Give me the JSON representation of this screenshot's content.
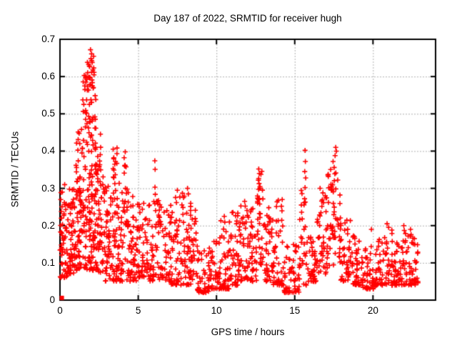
{
  "chart_data": {
    "type": "scatter",
    "title": "Day 187 of 2022, SRMTID for receiver hugh",
    "xlabel": "GPS time / hours",
    "ylabel": "SRMTID / TECUs",
    "xlim": [
      0,
      24
    ],
    "ylim": [
      0,
      0.7
    ],
    "xticks": {
      "values": [
        0,
        5,
        10,
        15,
        20
      ],
      "labels": [
        "0",
        "5",
        "10",
        "15",
        "20"
      ]
    },
    "yticks": {
      "values": [
        0,
        0.1,
        0.2,
        0.3,
        0.4,
        0.5,
        0.6,
        0.7
      ],
      "labels": [
        "0",
        "0.1",
        "0.2",
        "0.3",
        "0.4",
        "0.5",
        "0.6",
        "0.7"
      ]
    },
    "grid": true,
    "grid_style": "dotted at every major tick, mirrored ticks on all four borders",
    "legend": "none",
    "marker": "plus",
    "marker_color": "#ff0000",
    "grid_color": "#b0b0b0",
    "border_color": "#000000",
    "background": "#ffffff",
    "seed": 42,
    "origin_marker": {
      "x": 0.12,
      "y": 0.006,
      "shape": "filled-square"
    },
    "bands_format": "[x_start_h, x_end_h, y_min_TECU, y_max_TECU, point_count, bias(0=low,1=mid,2=spread)]",
    "density_bands": [
      [
        0.0,
        0.5,
        0.06,
        0.29,
        55,
        1
      ],
      [
        0.5,
        1.0,
        0.07,
        0.3,
        55,
        1
      ],
      [
        1.0,
        1.5,
        0.08,
        0.34,
        60,
        1
      ],
      [
        1.0,
        1.6,
        0.34,
        0.47,
        16,
        2
      ],
      [
        1.45,
        1.75,
        0.5,
        0.61,
        9,
        2
      ],
      [
        1.5,
        2.3,
        0.08,
        0.36,
        95,
        1
      ],
      [
        1.6,
        2.3,
        0.36,
        0.56,
        40,
        2
      ],
      [
        1.75,
        2.2,
        0.56,
        0.67,
        22,
        2
      ],
      [
        2.3,
        2.8,
        0.07,
        0.36,
        55,
        1
      ],
      [
        2.3,
        2.6,
        0.36,
        0.45,
        7,
        2
      ],
      [
        2.8,
        3.3,
        0.05,
        0.31,
        50,
        1
      ],
      [
        3.3,
        3.8,
        0.05,
        0.33,
        50,
        1
      ],
      [
        3.35,
        3.7,
        0.33,
        0.41,
        9,
        2
      ],
      [
        3.8,
        4.4,
        0.05,
        0.3,
        48,
        1
      ],
      [
        4.05,
        4.3,
        0.32,
        0.4,
        5,
        2
      ],
      [
        4.4,
        5.0,
        0.05,
        0.28,
        48,
        1
      ],
      [
        5.0,
        5.6,
        0.06,
        0.26,
        45,
        1
      ],
      [
        5.6,
        6.3,
        0.05,
        0.28,
        48,
        1
      ],
      [
        6.3,
        7.0,
        0.05,
        0.26,
        48,
        1
      ],
      [
        7.0,
        7.7,
        0.04,
        0.28,
        50,
        1
      ],
      [
        7.7,
        8.3,
        0.04,
        0.3,
        45,
        1
      ],
      [
        8.3,
        8.7,
        0.04,
        0.26,
        30,
        1
      ],
      [
        8.7,
        9.5,
        0.02,
        0.15,
        45,
        0
      ],
      [
        9.5,
        10.2,
        0.03,
        0.16,
        45,
        0
      ],
      [
        10.2,
        10.8,
        0.03,
        0.22,
        45,
        0
      ],
      [
        10.8,
        11.5,
        0.04,
        0.24,
        48,
        0
      ],
      [
        11.5,
        12.2,
        0.05,
        0.27,
        50,
        1
      ],
      [
        12.2,
        12.6,
        0.05,
        0.25,
        28,
        1
      ],
      [
        12.6,
        13.0,
        0.08,
        0.35,
        34,
        2
      ],
      [
        13.0,
        13.6,
        0.05,
        0.25,
        40,
        1
      ],
      [
        13.6,
        14.3,
        0.04,
        0.27,
        45,
        0
      ],
      [
        14.3,
        15.3,
        0.02,
        0.15,
        55,
        0
      ],
      [
        15.3,
        15.8,
        0.04,
        0.3,
        28,
        2
      ],
      [
        15.8,
        16.4,
        0.05,
        0.18,
        38,
        0
      ],
      [
        16.4,
        17.1,
        0.07,
        0.29,
        48,
        1
      ],
      [
        17.1,
        17.9,
        0.08,
        0.36,
        55,
        2
      ],
      [
        17.9,
        18.6,
        0.05,
        0.23,
        45,
        1
      ],
      [
        18.6,
        19.3,
        0.04,
        0.18,
        42,
        0
      ],
      [
        19.3,
        20.3,
        0.03,
        0.15,
        55,
        0
      ],
      [
        20.3,
        21.3,
        0.04,
        0.19,
        55,
        0
      ],
      [
        21.3,
        22.0,
        0.04,
        0.17,
        45,
        0
      ],
      [
        22.0,
        22.9,
        0.04,
        0.18,
        55,
        0
      ]
    ],
    "feature_points": [
      [
        1.95,
        0.672
      ],
      [
        2.02,
        0.661
      ],
      [
        1.98,
        0.648
      ],
      [
        2.06,
        0.638
      ],
      [
        1.9,
        0.627
      ],
      [
        2.1,
        0.618
      ],
      [
        1.55,
        0.603
      ],
      [
        1.62,
        0.596
      ],
      [
        1.66,
        0.585
      ],
      [
        1.72,
        0.592
      ],
      [
        1.58,
        0.575
      ],
      [
        0.3,
        0.31
      ],
      [
        0.15,
        0.29
      ],
      [
        0.05,
        0.27
      ],
      [
        0.1,
        0.22
      ],
      [
        3.4,
        0.405
      ],
      [
        3.44,
        0.382
      ],
      [
        3.5,
        0.365
      ],
      [
        4.1,
        0.382
      ],
      [
        4.16,
        0.362
      ],
      [
        6.06,
        0.374
      ],
      [
        6.08,
        0.351
      ],
      [
        6.07,
        0.303
      ],
      [
        6.09,
        0.284
      ],
      [
        7.5,
        0.295
      ],
      [
        8.15,
        0.3
      ],
      [
        8.2,
        0.285
      ],
      [
        8.35,
        0.26
      ],
      [
        10.5,
        0.225
      ],
      [
        11.0,
        0.235
      ],
      [
        11.8,
        0.265
      ],
      [
        12.7,
        0.352
      ],
      [
        12.74,
        0.34
      ],
      [
        12.68,
        0.322
      ],
      [
        12.78,
        0.305
      ],
      [
        13.95,
        0.268
      ],
      [
        14.15,
        0.252
      ],
      [
        14.2,
        0.27
      ],
      [
        15.66,
        0.402
      ],
      [
        15.68,
        0.372
      ],
      [
        15.64,
        0.345
      ],
      [
        15.7,
        0.328
      ],
      [
        15.66,
        0.302
      ],
      [
        15.63,
        0.272
      ],
      [
        16.62,
        0.3
      ],
      [
        16.8,
        0.288
      ],
      [
        17.62,
        0.41
      ],
      [
        17.66,
        0.4
      ],
      [
        17.58,
        0.388
      ],
      [
        17.45,
        0.372
      ],
      [
        17.52,
        0.356
      ],
      [
        19.9,
        0.19
      ],
      [
        20.9,
        0.205
      ],
      [
        21.0,
        0.195
      ],
      [
        21.97,
        0.2
      ],
      [
        22.0,
        0.187
      ],
      [
        22.4,
        0.19
      ]
    ]
  }
}
